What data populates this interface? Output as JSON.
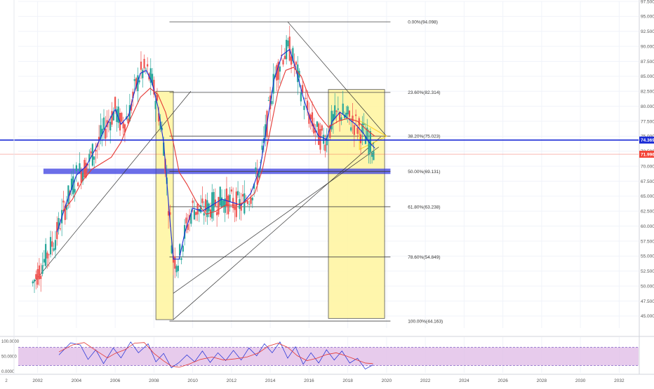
{
  "chart_data": {
    "type": "candlestick",
    "timeframe": "monthly",
    "x_range": [
      2001.0,
      2033.0
    ],
    "y_range": [
      43.0,
      97.5
    ],
    "y_ticks": [
      "97.500",
      "95.000",
      "92.500",
      "90.000",
      "87.500",
      "85.000",
      "82.500",
      "80.000",
      "77.500",
      "75.000",
      "72.500",
      "70.000",
      "67.500",
      "65.000",
      "62.500",
      "60.000",
      "57.500",
      "55.000",
      "52.500",
      "50.000",
      "47.500",
      "45.000"
    ],
    "x_ticks": [
      "2002",
      "2004",
      "2006",
      "2008",
      "2010",
      "2012",
      "2014",
      "2016",
      "2018",
      "2020",
      "2022",
      "2024",
      "2026",
      "2028",
      "2030",
      "2032"
    ],
    "price_labels": [
      {
        "text": "74.369",
        "value": 74.369,
        "color": "#1a2bd6"
      },
      {
        "text": "71.996",
        "value": 71.996,
        "color": "#f44336"
      }
    ],
    "fib_levels": [
      {
        "label": "0.00%(94.098)",
        "value": 94.098
      },
      {
        "label": "23.60%(82.314)",
        "value": 82.314
      },
      {
        "label": "38.20%(75.023)",
        "value": 75.023
      },
      {
        "label": "50.00%(69.131)",
        "value": 69.131
      },
      {
        "label": "61.80%(63.238)",
        "value": 63.238
      },
      {
        "label": "78.60%(54.849)",
        "value": 54.849
      },
      {
        "label": "100.00%(44.163)",
        "value": 44.163
      }
    ],
    "horizontal_line": {
      "value": 74.369,
      "color": "#1a2bd6"
    },
    "current_price_line": {
      "value": 71.996,
      "color": "#f44336"
    },
    "highlight_zone": {
      "from": 68.7,
      "to": 69.6,
      "color": "#3a3ee0"
    },
    "boxes": [
      {
        "x_from": 2008.1,
        "x_to": 2009.0,
        "y_from": 44.4,
        "y_to": 82.5,
        "color": "#fff59d"
      },
      {
        "x_from": 2017.0,
        "x_to": 2019.9,
        "y_from": 44.6,
        "y_to": 82.8,
        "color": "#fff59d"
      }
    ],
    "trend_lines": [
      {
        "x1": 2001.8,
        "y1": 50.6,
        "x2": 2009.9,
        "y2": 82.5
      },
      {
        "x1": 2009.0,
        "y1": 44.4,
        "x2": 2019.7,
        "y2": 74.9
      },
      {
        "x1": 2009.0,
        "y1": 48.8,
        "x2": 2019.6,
        "y2": 73.2
      },
      {
        "x1": 2014.9,
        "y1": 94.1,
        "x2": 2020.0,
        "y2": 75.0
      }
    ],
    "triangle": {
      "points": [
        [
          2018.6,
          77.6
        ],
        [
          2020.0,
          75.0
        ],
        [
          2018.6,
          72.8
        ]
      ],
      "color": "#fdd835"
    },
    "moving_averages": [
      {
        "color": "#1a2bd6",
        "points": [
          [
            2003.0,
            59.0
          ],
          [
            2003.5,
            64.0
          ],
          [
            2004.0,
            68.5
          ],
          [
            2004.5,
            70.0
          ],
          [
            2005.0,
            73.0
          ],
          [
            2005.5,
            76.5
          ],
          [
            2006.0,
            79.5
          ],
          [
            2006.3,
            77.0
          ],
          [
            2006.7,
            78.5
          ],
          [
            2007.0,
            82.5
          ],
          [
            2007.3,
            85.5
          ],
          [
            2007.6,
            86.0
          ],
          [
            2007.9,
            84.0
          ],
          [
            2008.2,
            80.0
          ],
          [
            2008.5,
            74.0
          ],
          [
            2008.8,
            62.0
          ],
          [
            2009.0,
            54.5
          ],
          [
            2009.3,
            54.5
          ],
          [
            2009.6,
            59.0
          ],
          [
            2010.0,
            63.0
          ],
          [
            2010.5,
            62.5
          ],
          [
            2011.0,
            63.5
          ],
          [
            2011.5,
            64.5
          ],
          [
            2012.0,
            64.0
          ],
          [
            2012.5,
            63.5
          ],
          [
            2013.0,
            65.5
          ],
          [
            2013.5,
            70.0
          ],
          [
            2013.9,
            78.5
          ],
          [
            2014.2,
            84.5
          ],
          [
            2014.6,
            88.5
          ],
          [
            2015.0,
            89.5
          ],
          [
            2015.3,
            86.5
          ],
          [
            2015.7,
            81.5
          ],
          [
            2016.1,
            77.5
          ],
          [
            2016.5,
            75.0
          ],
          [
            2016.9,
            74.5
          ],
          [
            2017.2,
            77.5
          ],
          [
            2017.6,
            79.0
          ],
          [
            2018.0,
            78.0
          ],
          [
            2018.4,
            77.0
          ],
          [
            2018.8,
            75.5
          ],
          [
            2019.1,
            74.0
          ],
          [
            2019.4,
            73.0
          ]
        ]
      },
      {
        "color": "#e53935",
        "points": [
          [
            2003.3,
            62.5
          ],
          [
            2003.8,
            64.5
          ],
          [
            2004.3,
            67.5
          ],
          [
            2004.8,
            69.5
          ],
          [
            2005.3,
            70.5
          ],
          [
            2005.8,
            71.5
          ],
          [
            2006.3,
            74.0
          ],
          [
            2006.8,
            78.0
          ],
          [
            2007.3,
            81.5
          ],
          [
            2007.8,
            83.0
          ],
          [
            2008.2,
            82.0
          ],
          [
            2008.6,
            79.0
          ],
          [
            2009.0,
            74.0
          ],
          [
            2009.3,
            69.0
          ],
          [
            2009.7,
            67.0
          ],
          [
            2010.2,
            64.0
          ],
          [
            2010.7,
            62.0
          ],
          [
            2011.2,
            62.5
          ],
          [
            2011.7,
            63.5
          ],
          [
            2012.2,
            63.5
          ],
          [
            2012.7,
            64.0
          ],
          [
            2013.2,
            65.5
          ],
          [
            2013.6,
            69.5
          ],
          [
            2014.0,
            76.0
          ],
          [
            2014.4,
            82.5
          ],
          [
            2014.8,
            86.0
          ],
          [
            2015.2,
            86.5
          ],
          [
            2015.6,
            85.0
          ],
          [
            2016.0,
            81.5
          ],
          [
            2016.5,
            78.5
          ],
          [
            2017.0,
            76.5
          ],
          [
            2017.5,
            77.5
          ],
          [
            2018.0,
            78.0
          ],
          [
            2018.5,
            77.5
          ],
          [
            2019.0,
            76.0
          ],
          [
            2019.4,
            75.0
          ]
        ]
      }
    ],
    "oscillator": {
      "y_ticks": [
        "100.0000",
        "50.0000",
        "0.0000"
      ],
      "y_range": [
        0,
        100
      ],
      "band": [
        20,
        80
      ],
      "band_color": "#e1bee7",
      "line_k": {
        "color": "#e53935",
        "points": [
          [
            2003.1,
            65
          ],
          [
            2003.8,
            88
          ],
          [
            2004.4,
            96
          ],
          [
            2005.0,
            70
          ],
          [
            2005.6,
            45
          ],
          [
            2006.0,
            60
          ],
          [
            2006.5,
            72
          ],
          [
            2007.0,
            94
          ],
          [
            2007.5,
            96
          ],
          [
            2008.0,
            60
          ],
          [
            2008.5,
            35
          ],
          [
            2008.9,
            18
          ],
          [
            2009.3,
            14
          ],
          [
            2009.8,
            24
          ],
          [
            2010.4,
            40
          ],
          [
            2011.0,
            48
          ],
          [
            2011.6,
            38
          ],
          [
            2012.2,
            42
          ],
          [
            2012.8,
            48
          ],
          [
            2013.4,
            62
          ],
          [
            2013.9,
            84
          ],
          [
            2014.4,
            94
          ],
          [
            2014.9,
            80
          ],
          [
            2015.4,
            52
          ],
          [
            2015.9,
            36
          ],
          [
            2016.4,
            44
          ],
          [
            2016.9,
            56
          ],
          [
            2017.4,
            62
          ],
          [
            2017.9,
            52
          ],
          [
            2018.4,
            40
          ],
          [
            2018.9,
            28
          ],
          [
            2019.3,
            26
          ]
        ]
      },
      "line_d": {
        "color": "#1a2bd6",
        "points": [
          [
            2003.1,
            55
          ],
          [
            2003.7,
            95
          ],
          [
            2004.2,
            88
          ],
          [
            2004.6,
            40
          ],
          [
            2005.0,
            72
          ],
          [
            2005.4,
            26
          ],
          [
            2005.9,
            78
          ],
          [
            2006.3,
            45
          ],
          [
            2006.8,
            98
          ],
          [
            2007.2,
            62
          ],
          [
            2007.7,
            92
          ],
          [
            2008.1,
            32
          ],
          [
            2008.5,
            60
          ],
          [
            2008.9,
            12
          ],
          [
            2009.3,
            30
          ],
          [
            2009.7,
            55
          ],
          [
            2010.1,
            32
          ],
          [
            2010.5,
            68
          ],
          [
            2010.9,
            30
          ],
          [
            2011.3,
            62
          ],
          [
            2011.7,
            36
          ],
          [
            2012.1,
            70
          ],
          [
            2012.5,
            38
          ],
          [
            2012.9,
            78
          ],
          [
            2013.3,
            52
          ],
          [
            2013.7,
            92
          ],
          [
            2014.1,
            62
          ],
          [
            2014.5,
            98
          ],
          [
            2014.9,
            44
          ],
          [
            2015.3,
            82
          ],
          [
            2015.7,
            24
          ],
          [
            2016.1,
            62
          ],
          [
            2016.5,
            28
          ],
          [
            2016.9,
            72
          ],
          [
            2017.3,
            38
          ],
          [
            2017.7,
            68
          ],
          [
            2018.1,
            28
          ],
          [
            2018.5,
            44
          ],
          [
            2018.9,
            8
          ],
          [
            2019.3,
            22
          ]
        ]
      }
    },
    "left_tags": [
      "2"
    ],
    "candles_note": ""
  }
}
